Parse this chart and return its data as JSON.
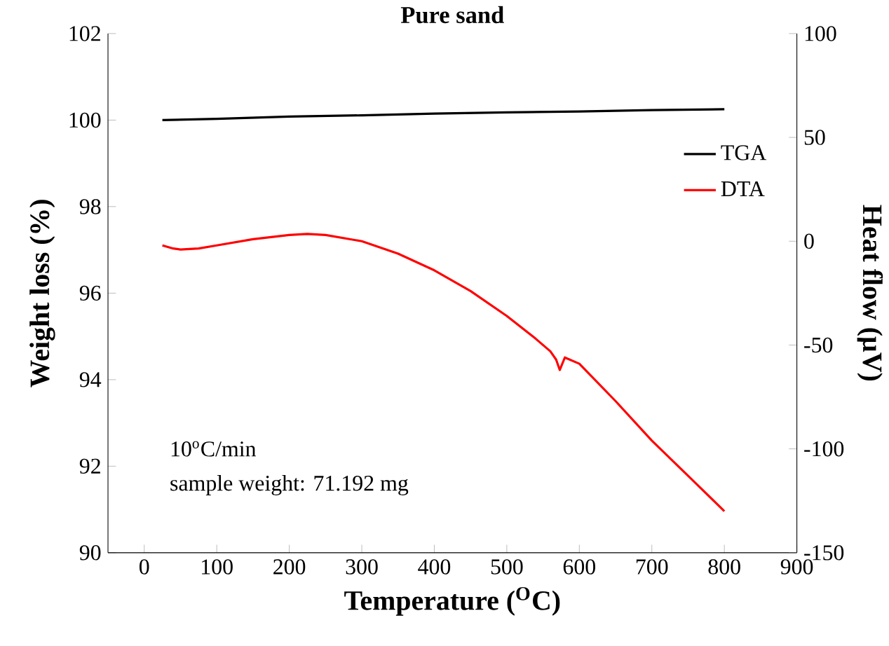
{
  "chart_data": {
    "type": "line",
    "title": "Pure sand",
    "xlabel": "Temperature ($^{O}$C)",
    "ylabel": "Weight loss (%)",
    "y2label": "Heat flow (µV)",
    "xlim": [
      -50,
      900
    ],
    "xticks": [
      0,
      100,
      200,
      300,
      400,
      500,
      600,
      700,
      800,
      900
    ],
    "ylim": [
      90,
      102
    ],
    "yticks": [
      90,
      92,
      94,
      96,
      98,
      100,
      102
    ],
    "y2lim": [
      -150,
      100
    ],
    "y2ticks": [
      -150,
      -100,
      -50,
      0,
      50,
      100
    ],
    "legend": "top right",
    "marker": "none",
    "line_style": "solid",
    "annotations": [
      "10$^{o}$C/min",
      "sample weight: 71.192 mg"
    ],
    "series": [
      {
        "name": "TGA",
        "color": "#000000",
        "x": [
          25,
          100,
          200,
          300,
          400,
          500,
          600,
          700,
          800
        ],
        "values": [
          100.0,
          100.03,
          100.08,
          100.11,
          100.15,
          100.18,
          100.2,
          100.23,
          100.25
        ]
      },
      {
        "name": "DTA",
        "color": "#ff0000",
        "axis": "y2",
        "x": [
          25,
          40,
          50,
          75,
          100,
          150,
          200,
          225,
          250,
          300,
          350,
          400,
          450,
          500,
          540,
          560,
          568,
          573,
          580,
          600,
          650,
          700,
          750,
          800
        ],
        "values": [
          -2,
          -3.5,
          -4,
          -3.5,
          -2,
          1,
          3,
          3.5,
          3,
          0,
          -6,
          -14,
          -24,
          -36,
          -47,
          -53,
          -57,
          -62,
          -56,
          -59,
          -77,
          -96,
          -113,
          -130
        ]
      }
    ]
  }
}
